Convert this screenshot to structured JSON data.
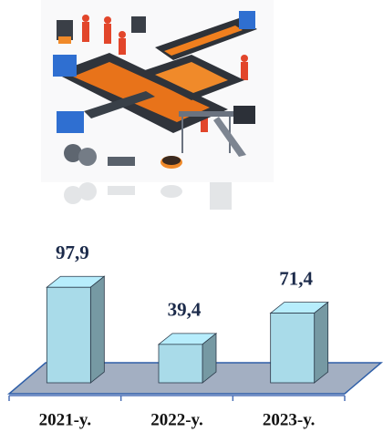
{
  "chart_data": {
    "type": "bar",
    "categories": [
      "2021-y.",
      "2022-y.",
      "2023-y."
    ],
    "values": [
      97.9,
      39.4,
      71.4
    ],
    "value_labels": [
      "97,9",
      "39,4",
      "71,4"
    ],
    "color": "#a9dbe9"
  }
}
